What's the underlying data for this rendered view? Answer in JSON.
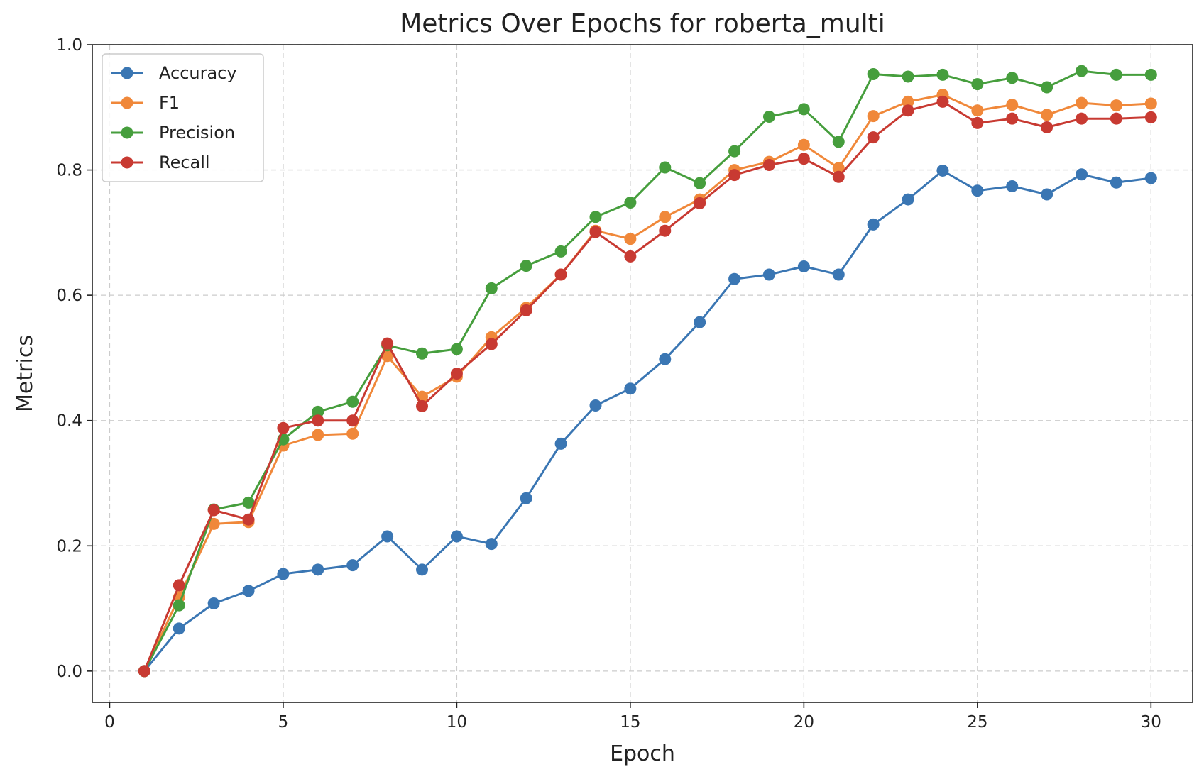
{
  "chart_data": {
    "type": "line",
    "title": "Metrics Over Epochs for roberta_multi",
    "xlabel": "Epoch",
    "ylabel": "Metrics",
    "xlim": [
      -0.5,
      31.2
    ],
    "ylim": [
      -0.05,
      1.0
    ],
    "xticks": [
      0,
      5,
      10,
      15,
      20,
      25,
      30
    ],
    "yticks": [
      0.0,
      0.2,
      0.4,
      0.6,
      0.8,
      1.0
    ],
    "xtick_labels": [
      "0",
      "5",
      "10",
      "15",
      "20",
      "25",
      "30"
    ],
    "ytick_labels": [
      "0.0",
      "0.2",
      "0.4",
      "0.6",
      "0.8",
      "1.0"
    ],
    "grid": true,
    "legend_position": "top-left",
    "x": [
      1,
      2,
      3,
      4,
      5,
      6,
      7,
      8,
      9,
      10,
      11,
      12,
      13,
      14,
      15,
      16,
      17,
      18,
      19,
      20,
      21,
      22,
      23,
      24,
      25,
      26,
      27,
      28,
      29,
      30
    ],
    "series": [
      {
        "name": "Accuracy",
        "color": "#3a76b3",
        "values": [
          0.0,
          0.068,
          0.108,
          0.128,
          0.155,
          0.162,
          0.169,
          0.215,
          0.162,
          0.215,
          0.203,
          0.276,
          0.363,
          0.424,
          0.451,
          0.498,
          0.557,
          0.626,
          0.633,
          0.646,
          0.633,
          0.713,
          0.753,
          0.799,
          0.767,
          0.774,
          0.761,
          0.793,
          0.78,
          0.787
        ]
      },
      {
        "name": "F1",
        "color": "#f0883a",
        "values": [
          0.0,
          0.118,
          0.235,
          0.238,
          0.36,
          0.377,
          0.379,
          0.503,
          0.438,
          0.47,
          0.533,
          0.58,
          0.633,
          0.703,
          0.69,
          0.725,
          0.753,
          0.8,
          0.813,
          0.84,
          0.803,
          0.886,
          0.909,
          0.92,
          0.895,
          0.904,
          0.888,
          0.907,
          0.903,
          0.906
        ]
      },
      {
        "name": "Precision",
        "color": "#469e3d",
        "values": [
          0.0,
          0.105,
          0.258,
          0.269,
          0.37,
          0.414,
          0.43,
          0.52,
          0.507,
          0.514,
          0.611,
          0.647,
          0.67,
          0.725,
          0.748,
          0.804,
          0.779,
          0.83,
          0.885,
          0.897,
          0.845,
          0.953,
          0.949,
          0.952,
          0.937,
          0.947,
          0.932,
          0.958,
          0.952,
          0.952
        ]
      },
      {
        "name": "Recall",
        "color": "#c83a32",
        "values": [
          0.0,
          0.137,
          0.257,
          0.242,
          0.388,
          0.4,
          0.4,
          0.523,
          0.423,
          0.475,
          0.522,
          0.576,
          0.633,
          0.701,
          0.662,
          0.703,
          0.747,
          0.792,
          0.808,
          0.818,
          0.789,
          0.852,
          0.895,
          0.909,
          0.875,
          0.882,
          0.868,
          0.882,
          0.882,
          0.884
        ]
      }
    ]
  }
}
